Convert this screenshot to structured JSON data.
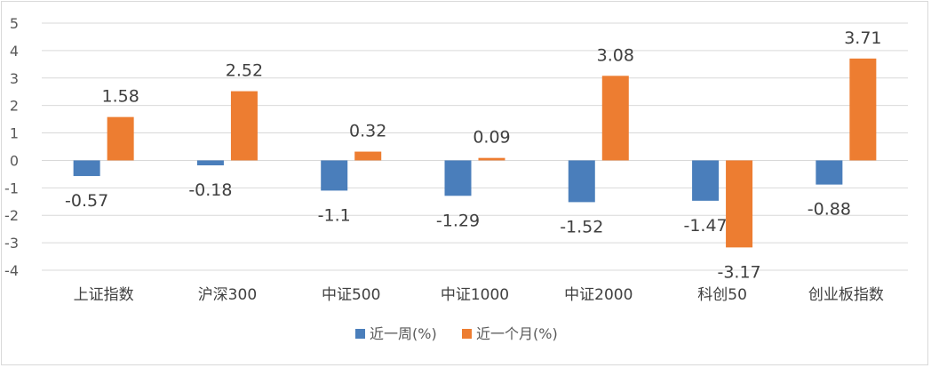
{
  "chart_data": {
    "type": "bar",
    "categories": [
      "上证指数",
      "沪深300",
      "中证500",
      "中证1000",
      "中证2000",
      "科创50",
      "创业板指数"
    ],
    "series": [
      {
        "name": "近一周(%)",
        "values": [
          -0.57,
          -0.18,
          -1.1,
          -1.29,
          -1.52,
          -1.47,
          -0.88
        ],
        "labels": [
          "-0.57",
          "-0.18",
          "-1.1",
          "-1.29",
          "-1.52",
          "-1.47",
          "-0.88"
        ],
        "color": "#4a7ebb"
      },
      {
        "name": "近一个月(%)",
        "values": [
          1.58,
          2.52,
          0.32,
          0.09,
          3.08,
          -3.17,
          3.71
        ],
        "labels": [
          "1.58",
          "2.52",
          "0.32",
          "0.09",
          "3.08",
          "-3.17",
          "3.71"
        ],
        "color": "#ed7d31"
      }
    ],
    "ylim": [
      -4,
      5
    ],
    "yticks": [
      "-4",
      "-3",
      "-2",
      "-1",
      "0",
      "1",
      "2",
      "3",
      "4",
      "5"
    ],
    "grid": true,
    "legend_position": "bottom"
  }
}
